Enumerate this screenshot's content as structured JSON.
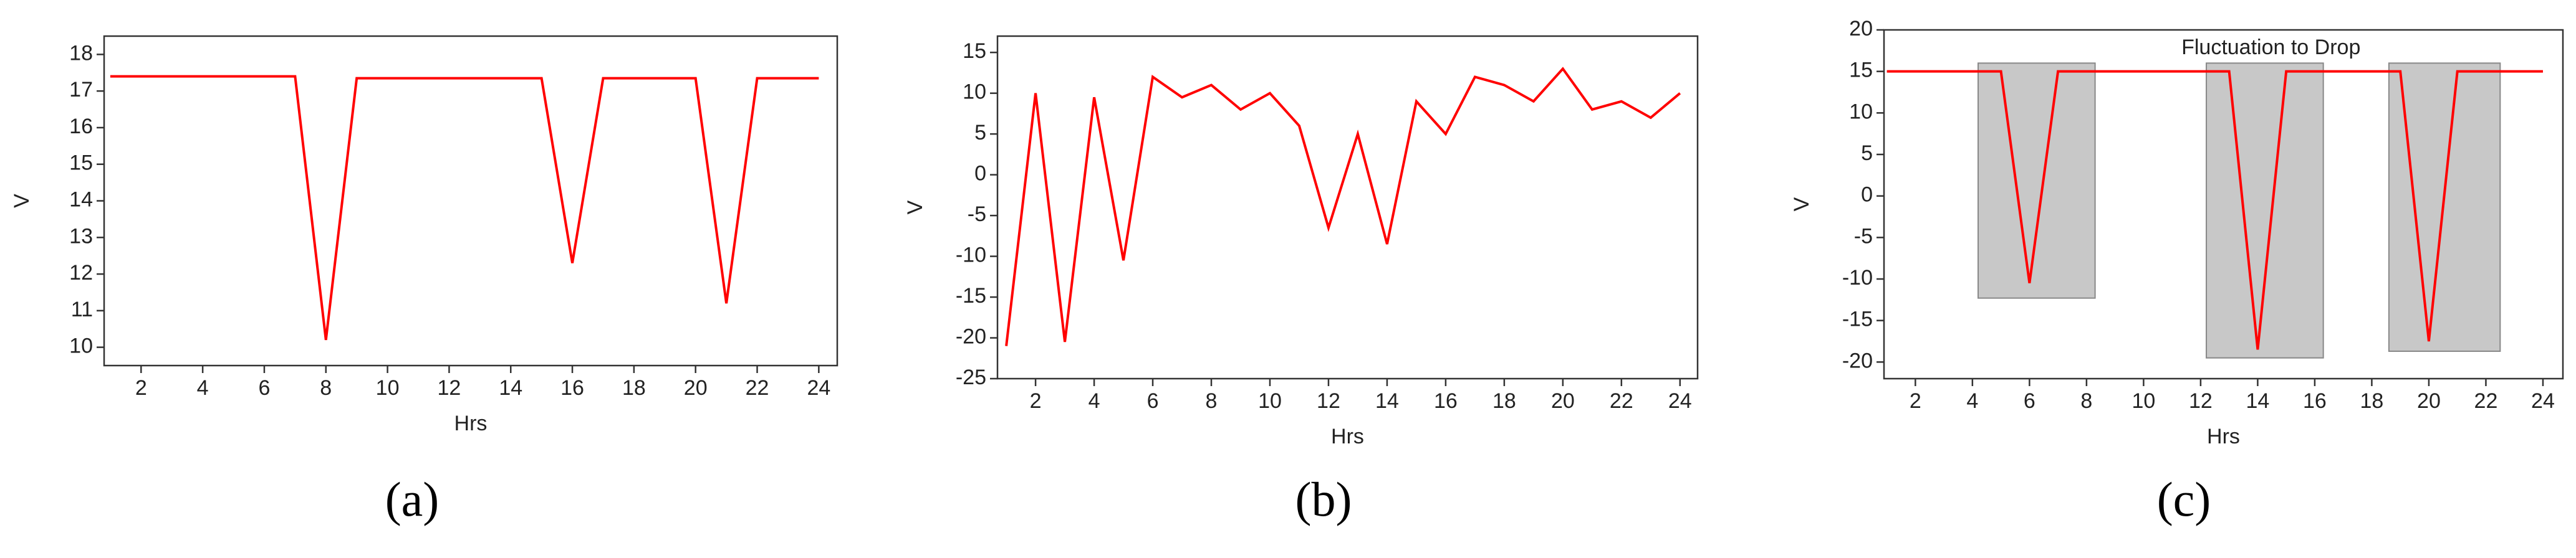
{
  "chart_data": [
    {
      "type": "line",
      "caption": "(a)",
      "xlabel": "Hrs",
      "ylabel": "V",
      "x": [
        1,
        2,
        3,
        4,
        5,
        6,
        7,
        8,
        9,
        10,
        11,
        12,
        13,
        14,
        15,
        16,
        17,
        18,
        19,
        20,
        21,
        22,
        23,
        24
      ],
      "series": [
        {
          "color": "#ff0000",
          "values": [
            17.4,
            17.4,
            17.4,
            17.4,
            17.4,
            17.4,
            17.4,
            10.2,
            17.35,
            17.35,
            17.35,
            17.35,
            17.35,
            17.35,
            17.35,
            12.3,
            17.35,
            17.35,
            17.35,
            17.35,
            11.2,
            17.35,
            17.35,
            17.35
          ]
        }
      ],
      "xlim": [
        0.8,
        24.6
      ],
      "xticks": [
        2,
        4,
        6,
        8,
        10,
        12,
        14,
        16,
        18,
        20,
        22,
        24
      ],
      "ylim": [
        9.5,
        18.5
      ],
      "yticks": [
        10,
        11,
        12,
        13,
        14,
        15,
        16,
        17,
        18
      ]
    },
    {
      "type": "line",
      "caption": "(b)",
      "xlabel": "Hrs",
      "ylabel": "V",
      "x": [
        1,
        2,
        3,
        4,
        5,
        6,
        7,
        8,
        9,
        10,
        11,
        12,
        13,
        14,
        15,
        16,
        17,
        18,
        19,
        20,
        21,
        22,
        23,
        24
      ],
      "series": [
        {
          "color": "#ff0000",
          "values": [
            -21,
            10,
            -20.5,
            9.5,
            -10.5,
            12,
            9.5,
            11,
            8,
            10,
            6,
            -6.5,
            5,
            -8.5,
            9,
            5,
            12,
            11,
            9,
            13,
            8,
            9,
            7,
            10
          ]
        }
      ],
      "xlim": [
        0.7,
        24.6
      ],
      "xticks": [
        2,
        4,
        6,
        8,
        10,
        12,
        14,
        16,
        18,
        20,
        22,
        24
      ],
      "ylim": [
        -25,
        17
      ],
      "yticks": [
        -25,
        -20,
        -15,
        -10,
        -5,
        0,
        5,
        10,
        15
      ]
    },
    {
      "type": "line",
      "caption": "(c)",
      "xlabel": "Hrs",
      "ylabel": "V",
      "annotation": "Fluctuation to Drop",
      "x": [
        1,
        2,
        3,
        4,
        5,
        6,
        7,
        8,
        9,
        10,
        11,
        12,
        13,
        14,
        15,
        16,
        17,
        18,
        19,
        20,
        21,
        22,
        23,
        24
      ],
      "series": [
        {
          "color": "#ff0000",
          "values": [
            15,
            15,
            15,
            15,
            15,
            -10.5,
            15,
            15,
            15,
            15,
            15,
            15,
            15,
            -18.5,
            15,
            15,
            15,
            15,
            15,
            -17.5,
            15,
            15,
            15,
            15
          ]
        }
      ],
      "highlight_regions": [
        {
          "x": [
            4.2,
            8.3
          ],
          "y": [
            -12.3,
            16
          ]
        },
        {
          "x": [
            12.2,
            16.3
          ],
          "y": [
            -19.5,
            16
          ]
        },
        {
          "x": [
            18.6,
            22.5
          ],
          "y": [
            -18.7,
            16
          ]
        }
      ],
      "region_color": "#c8c8c8",
      "xlim": [
        0.9,
        24.7
      ],
      "xticks": [
        2,
        4,
        6,
        8,
        10,
        12,
        14,
        16,
        18,
        20,
        22,
        24
      ],
      "ylim": [
        -22,
        20
      ],
      "yticks": [
        -20,
        -15,
        -10,
        -5,
        0,
        5,
        10,
        15,
        20
      ]
    }
  ]
}
